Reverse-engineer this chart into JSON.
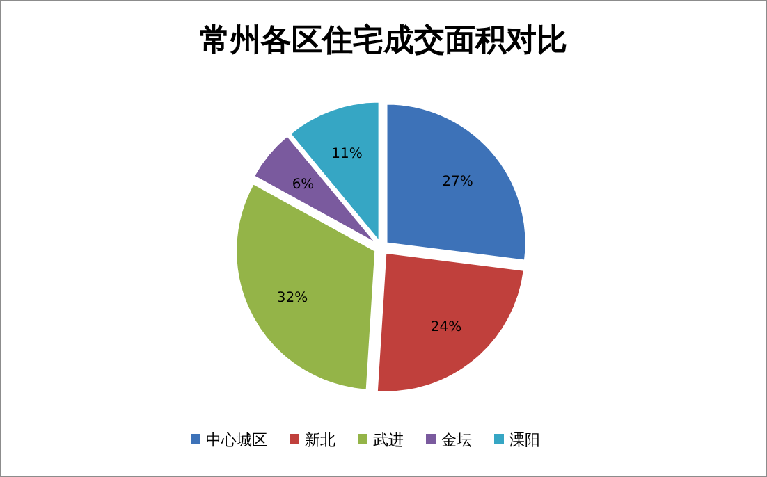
{
  "chart_data": {
    "type": "pie",
    "title": "常州各区住宅成交面积对比",
    "categories": [
      "中心城区",
      "新北",
      "武进",
      "金坛",
      "溧阳"
    ],
    "values": [
      27,
      24,
      32,
      6,
      11
    ],
    "colors": [
      "#3d72b8",
      "#c0403c",
      "#94b448",
      "#7a5a9e",
      "#36a6c4"
    ],
    "value_labels": [
      "27%",
      "24%",
      "32%",
      "6%",
      "11%"
    ],
    "legend": "bottom"
  }
}
